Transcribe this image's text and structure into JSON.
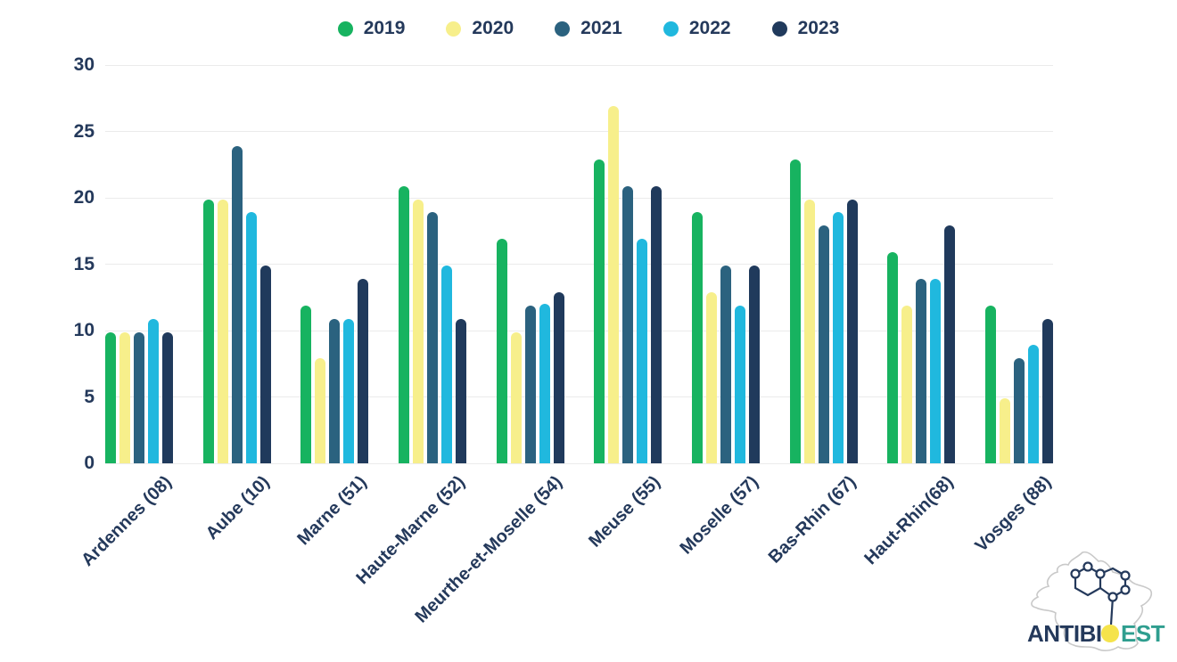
{
  "chart_data": {
    "type": "bar",
    "title": "",
    "xlabel": "",
    "ylabel": "",
    "ylim": [
      0,
      30
    ],
    "yticks": [
      0,
      5,
      10,
      15,
      20,
      25,
      30
    ],
    "grid": true,
    "legend_position": "top-center",
    "categories": [
      "Ardennes (08)",
      "Aube (10)",
      "Marne (51)",
      "Haute-Marne (52)",
      "Meurthe-et-Moselle (54)",
      "Meuse (55)",
      "Moselle (57)",
      "Bas-Rhin (67)",
      "Haut-Rhin(68)",
      "Vosges (88)"
    ],
    "series": [
      {
        "name": "2019",
        "color": "#17b360",
        "values": [
          9.9,
          19.9,
          11.9,
          20.9,
          16.9,
          22.9,
          18.9,
          22.9,
          15.9,
          11.9
        ]
      },
      {
        "name": "2020",
        "color": "#f7ef8b",
        "values": [
          9.9,
          19.9,
          7.9,
          19.9,
          9.9,
          26.9,
          12.9,
          19.9,
          11.9,
          4.9
        ]
      },
      {
        "name": "2021",
        "color": "#2b627f",
        "values": [
          9.9,
          23.9,
          10.9,
          18.9,
          11.9,
          20.9,
          14.9,
          17.9,
          13.9,
          7.9
        ]
      },
      {
        "name": "2022",
        "color": "#20b8de",
        "values": [
          10.9,
          18.9,
          10.9,
          14.9,
          12.0,
          16.9,
          11.9,
          18.9,
          13.9,
          8.9
        ]
      },
      {
        "name": "2023",
        "color": "#203a5c",
        "values": [
          9.9,
          14.9,
          13.9,
          10.9,
          12.9,
          20.9,
          14.9,
          19.9,
          17.9,
          10.9
        ]
      }
    ]
  },
  "colors": {
    "axis_text": "#24395b",
    "gridline": "#ebebeb",
    "logo_navy": "#24395b",
    "logo_teal": "#2f9e8f",
    "logo_yellow": "#f5e34b",
    "logo_outline": "#c9c9c9"
  },
  "logo": {
    "brand_part1": "ANTIBI",
    "brand_o": "O",
    "brand_part2": "EST"
  }
}
